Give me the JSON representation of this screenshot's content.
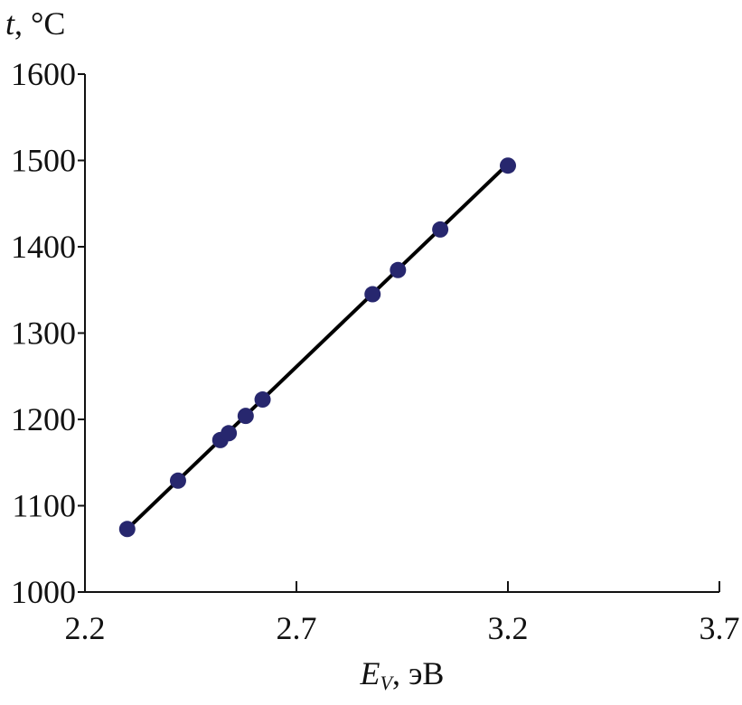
{
  "chart_data": {
    "type": "scatter",
    "x_label_symbol": "E",
    "x_label_subscript": "V",
    "x_label_unit": ", эВ",
    "y_label_symbol": "t",
    "y_label_unit": ", °C",
    "series": [
      {
        "color": "#27276e",
        "x": [
          2.3,
          2.42,
          2.52,
          2.54,
          2.58,
          2.62,
          2.88,
          2.94,
          3.04,
          3.2
        ],
        "values": [
          1073,
          1129,
          1176,
          1184,
          1204,
          1223,
          1345,
          1373,
          1420,
          1494
        ]
      }
    ],
    "fit": {
      "color": "#000000",
      "x": [
        2.3,
        3.2
      ],
      "values": [
        1073,
        1496
      ]
    },
    "xlim": [
      2.2,
      3.7
    ],
    "xticks": [
      2.2,
      2.7,
      3.2,
      3.7
    ],
    "ylim": [
      1000,
      1600
    ],
    "yticks": [
      1000,
      1100,
      1200,
      1300,
      1400,
      1500,
      1600
    ]
  }
}
